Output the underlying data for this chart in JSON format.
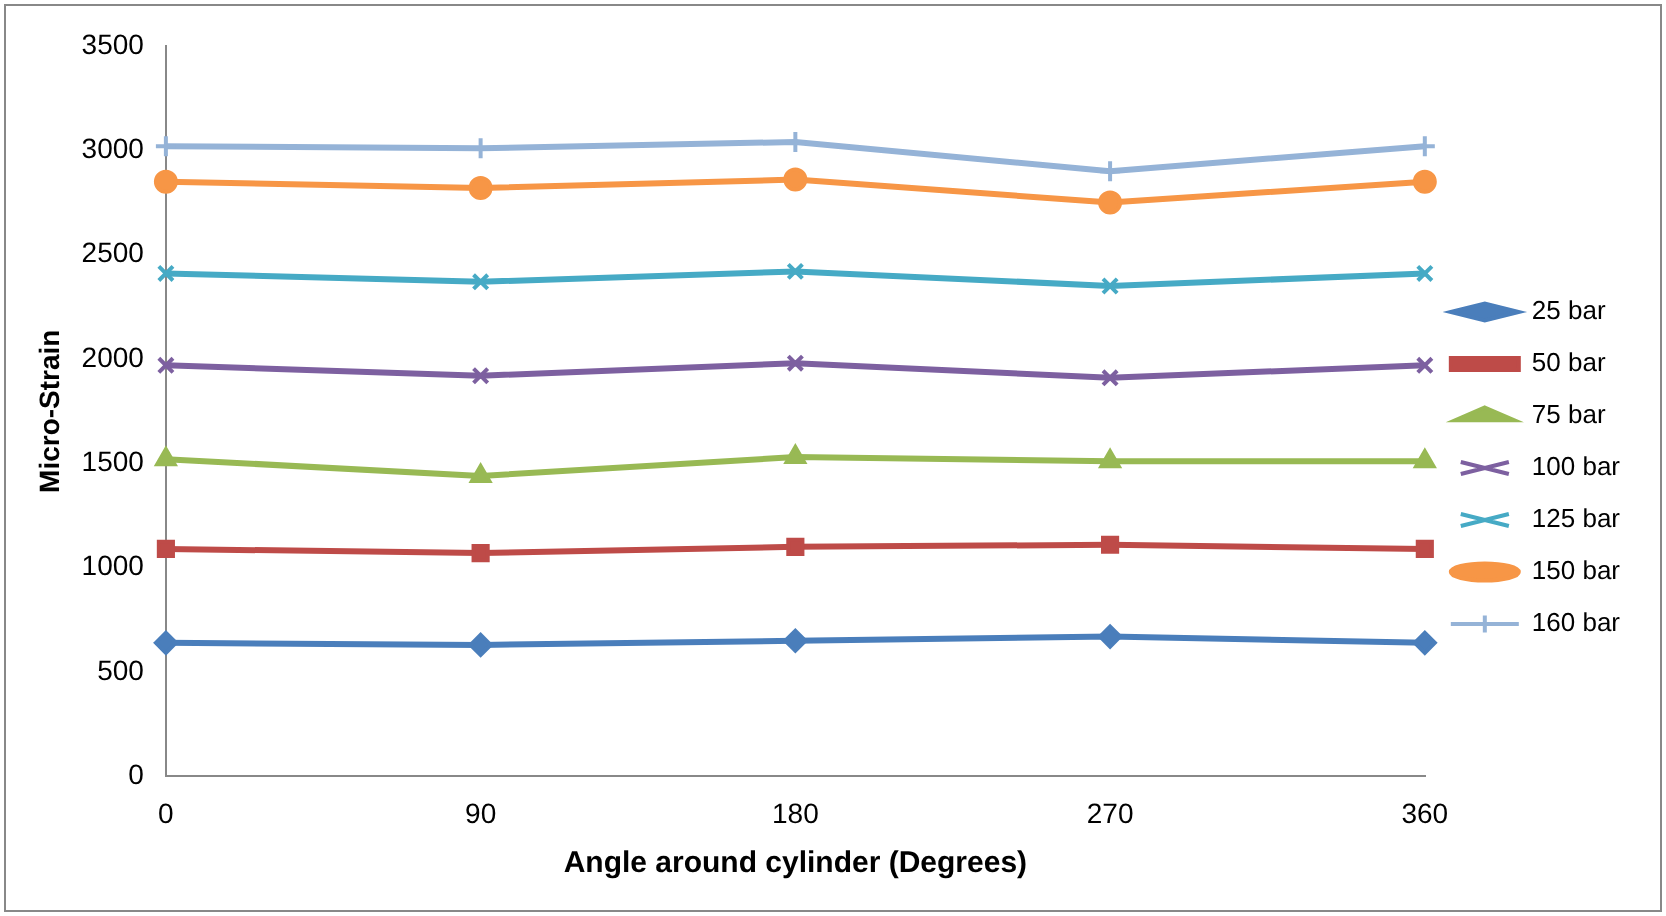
{
  "chart_data": {
    "type": "line",
    "xlabel": "Angle around cylinder (Degrees)",
    "ylabel": "Micro-Strain",
    "categories": [
      "0",
      "90",
      "180",
      "270",
      "360"
    ],
    "ylim": [
      0,
      3500
    ],
    "yticks": [
      0,
      500,
      1000,
      1500,
      2000,
      2500,
      3000,
      3500
    ],
    "grid": false,
    "legend": "right",
    "line_style": "solid",
    "series": [
      {
        "name": "25 bar",
        "color": "#4a7ebb",
        "marker": "diamond",
        "values": [
          640,
          630,
          650,
          670,
          640
        ]
      },
      {
        "name": "50 bar",
        "color": "#be4b48",
        "marker": "square",
        "values": [
          1090,
          1070,
          1100,
          1110,
          1090
        ]
      },
      {
        "name": "75 bar",
        "color": "#98b954",
        "marker": "triangle",
        "values": [
          1520,
          1440,
          1530,
          1510,
          1510
        ]
      },
      {
        "name": "100 bar",
        "color": "#7d60a0",
        "marker": "cross",
        "values": [
          1970,
          1920,
          1980,
          1910,
          1970
        ]
      },
      {
        "name": "125 bar",
        "color": "#46aac5",
        "marker": "cross",
        "values": [
          2410,
          2370,
          2420,
          2350,
          2410
        ]
      },
      {
        "name": "150 bar",
        "color": "#f79646",
        "marker": "circle",
        "values": [
          2850,
          2820,
          2860,
          2750,
          2850
        ]
      },
      {
        "name": "160 bar",
        "color": "#95b3d7",
        "marker": "plus",
        "values": [
          3020,
          3010,
          3040,
          2900,
          3020
        ]
      }
    ]
  }
}
